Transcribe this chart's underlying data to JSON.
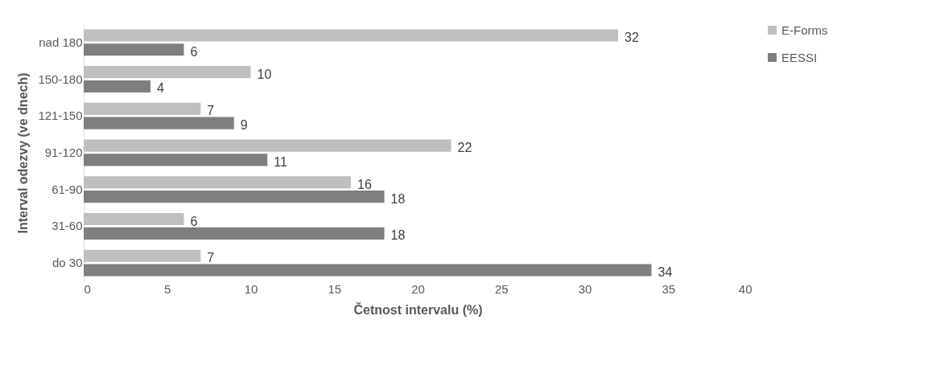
{
  "chart_data": {
    "type": "bar",
    "orientation": "horizontal",
    "xlabel": "Četnost intervalu (%)",
    "ylabel": "Interval odezvy (ve dnech)",
    "categories": [
      "nad 180",
      "150-180",
      "121-150",
      "91-120",
      "61-90",
      "31-60",
      "do 30"
    ],
    "series": [
      {
        "name": "E-Forms",
        "color": "#bfbfbf",
        "values": [
          32,
          10,
          7,
          22,
          16,
          6,
          7
        ]
      },
      {
        "name": "EESSI",
        "color": "#7f7f7f",
        "values": [
          6,
          4,
          9,
          11,
          18,
          18,
          34
        ]
      }
    ],
    "xlim": [
      0,
      40
    ],
    "xticks": [
      0,
      5,
      10,
      15,
      20,
      25,
      30,
      35,
      40
    ],
    "legend": "right",
    "data_labels": true
  }
}
